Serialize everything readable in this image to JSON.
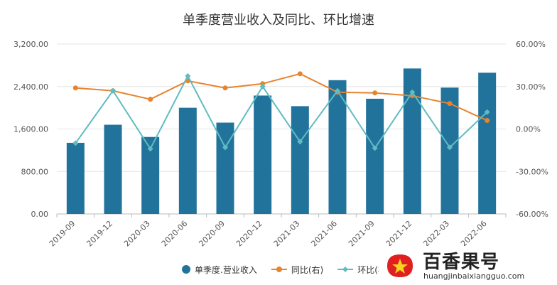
{
  "title": "单季度营业收入及同比、环比增速",
  "chart_data": {
    "type": "bar",
    "title": "单季度营业收入及同比、环比增速",
    "categories": [
      "2019-09",
      "2019-12",
      "2020-03",
      "2020-06",
      "2020-09",
      "2020-12",
      "2021-03",
      "2021-06",
      "2021-09",
      "2021-12",
      "2022-03",
      "2022-06"
    ],
    "ylim": [
      0,
      3200
    ],
    "y2lim": [
      -60,
      60
    ],
    "y_ticks": [
      "0.00",
      "800.00",
      "1,600.00",
      "2,400.00",
      "3,200.00"
    ],
    "y2_ticks": [
      "-60.00%",
      "-30.00%",
      "0.00%",
      "30.00%",
      "60.00%"
    ],
    "series": [
      {
        "name": "单季度.营业收入",
        "type": "bar",
        "axis": "left",
        "color": "#21739c",
        "values": [
          1340,
          1680,
          1450,
          2000,
          1720,
          2230,
          2030,
          2520,
          2170,
          2740,
          2380,
          2660
        ]
      },
      {
        "name": "同比(右)",
        "type": "line",
        "axis": "right",
        "color": "#e8832e",
        "values": [
          29,
          27,
          21,
          34,
          29,
          32,
          39,
          26,
          25.5,
          23.5,
          18,
          6
        ]
      },
      {
        "name": "环比(右)",
        "type": "line",
        "axis": "right",
        "color": "#5fbcc2",
        "values": [
          -10,
          27,
          -14,
          37.5,
          -13,
          30,
          -9,
          27,
          -13.5,
          26,
          -13,
          12
        ]
      }
    ],
    "legend_position": "bottom"
  },
  "watermark": {
    "name": "百香果号",
    "url": "huangjinbaixiangguo.com"
  }
}
